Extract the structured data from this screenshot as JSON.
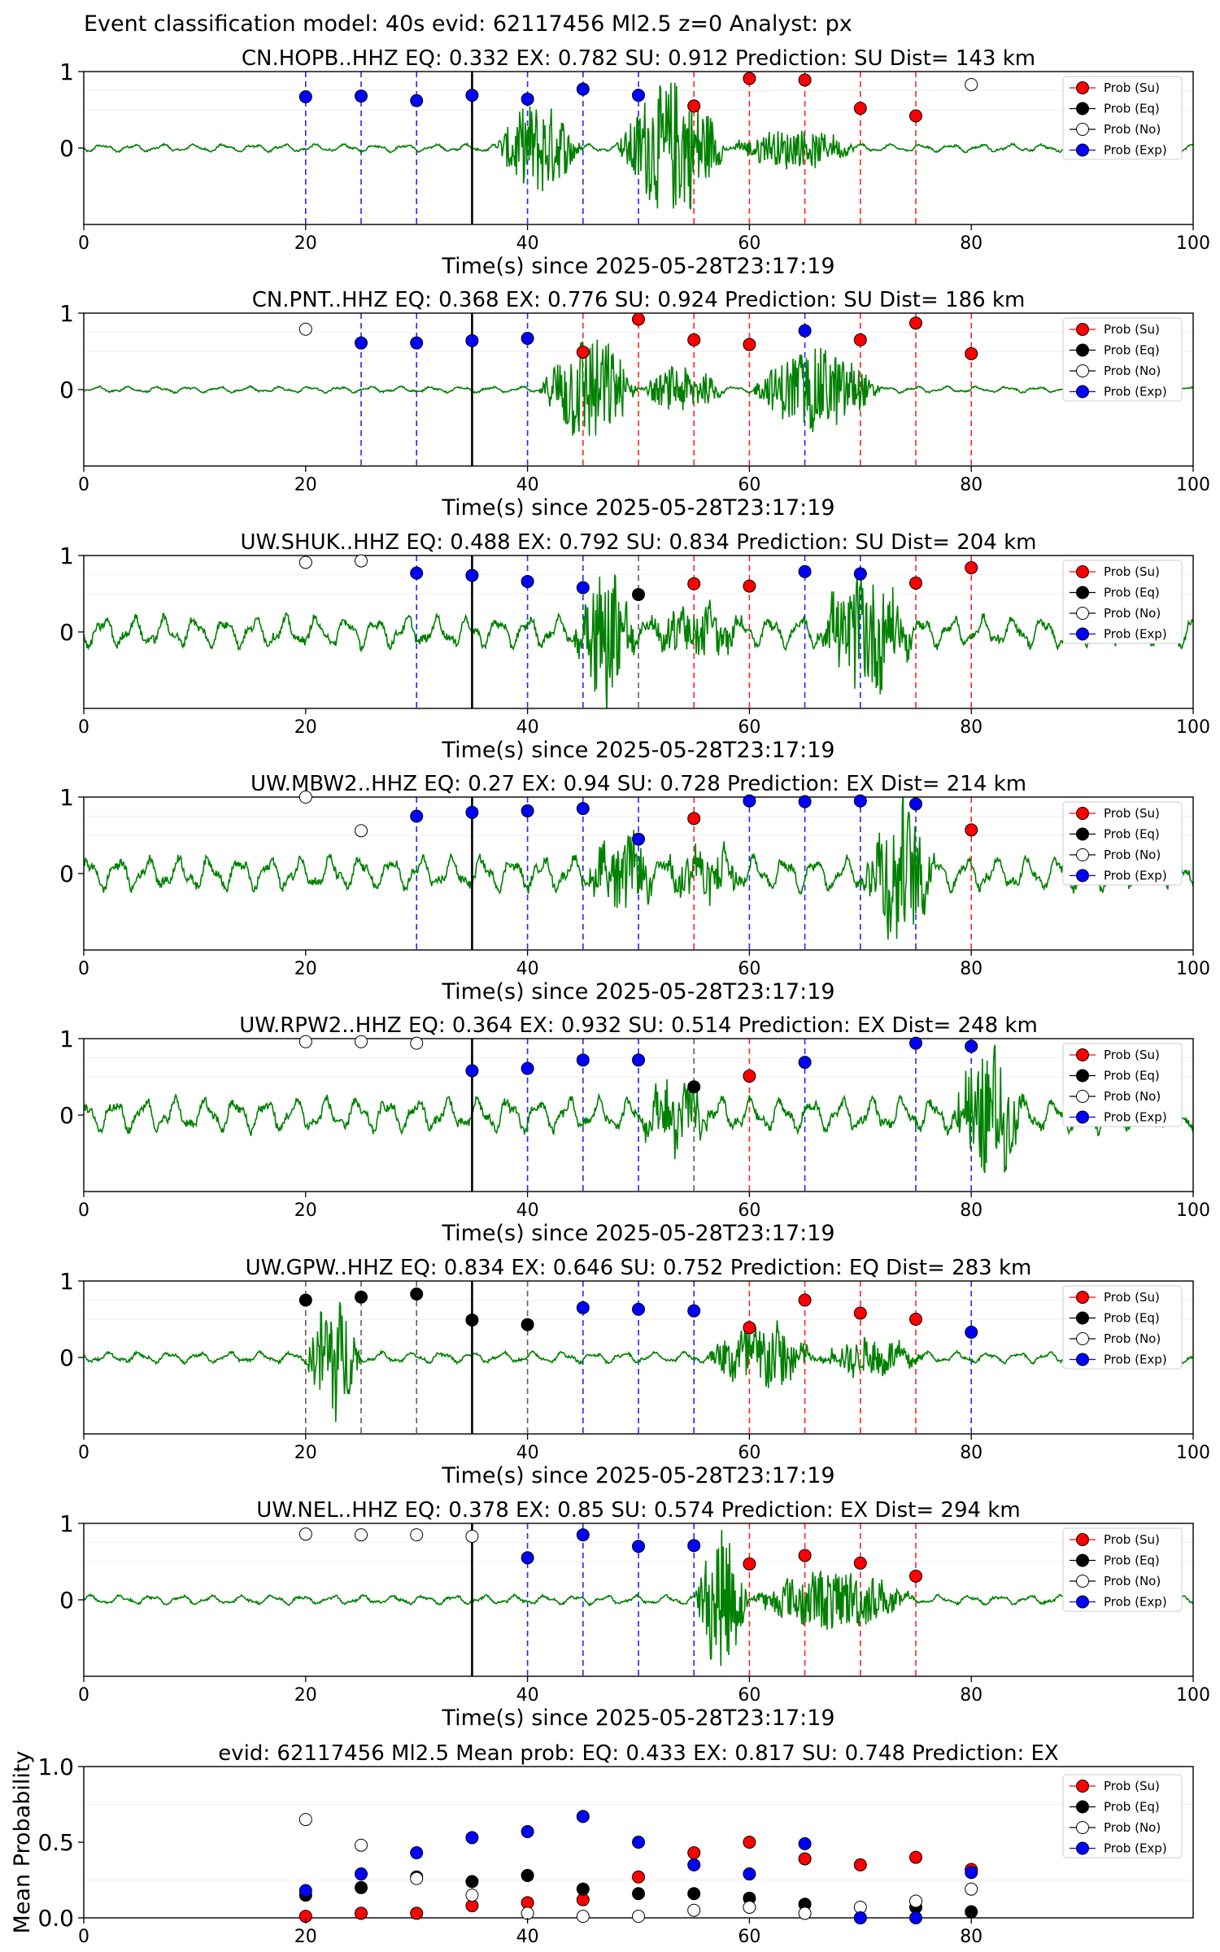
{
  "figure": {
    "suptitle": "Event classification model: 40s evid: 62117456 Ml2.5 z=0 Analyst: px",
    "legend_labels": [
      "Prob (Su)",
      "Prob (Eq)",
      "Prob (No)",
      "Prob (Exp)"
    ],
    "colors": {
      "su": "#ff0000",
      "eq": "#000000",
      "no": "#ffffff",
      "exp": "#0000ff",
      "trace": "#008000",
      "trace_tail": "#a8d8a8"
    }
  },
  "chart_data": [
    {
      "type": "scatter",
      "station": "CN.HOPB..HHZ",
      "title": "CN.HOPB..HHZ   EQ: 0.332  EX: 0.782  SU: 0.912   Prediction: SU    Dist= 143 km",
      "xlabel": "Time(s) since 2025-05-28T23:17:19",
      "xlim": [
        0,
        100
      ],
      "xticks": [
        0,
        20,
        40,
        60,
        80,
        100
      ],
      "yticks": [
        1,
        0
      ],
      "ylim": [
        -1,
        1
      ],
      "pick_time": 35,
      "onset": 37,
      "noise": 0.05,
      "signals": [
        [
          37,
          45,
          0.6
        ],
        [
          48,
          58,
          0.9
        ],
        [
          58,
          70,
          0.25
        ]
      ],
      "points": [
        {
          "x": 20,
          "class": "exp",
          "p": 0.67
        },
        {
          "x": 25,
          "class": "exp",
          "p": 0.68
        },
        {
          "x": 30,
          "class": "exp",
          "p": 0.62
        },
        {
          "x": 35,
          "class": "exp",
          "p": 0.69
        },
        {
          "x": 40,
          "class": "exp",
          "p": 0.64
        },
        {
          "x": 45,
          "class": "exp",
          "p": 0.77
        },
        {
          "x": 50,
          "class": "exp",
          "p": 0.69
        },
        {
          "x": 55,
          "class": "su",
          "p": 0.55
        },
        {
          "x": 60,
          "class": "su",
          "p": 0.91
        },
        {
          "x": 65,
          "class": "su",
          "p": 0.89
        },
        {
          "x": 70,
          "class": "su",
          "p": 0.52
        },
        {
          "x": 75,
          "class": "su",
          "p": 0.42
        },
        {
          "x": 80,
          "class": "no",
          "p": 0.83
        }
      ]
    },
    {
      "type": "scatter",
      "station": "CN.PNT..HHZ",
      "title": "CN.PNT..HHZ   EQ: 0.368  EX: 0.776  SU: 0.924   Prediction: SU    Dist= 186 km",
      "xlabel": "Time(s) since 2025-05-28T23:17:19",
      "xlim": [
        0,
        100
      ],
      "xticks": [
        0,
        20,
        40,
        60,
        80,
        100
      ],
      "yticks": [
        1,
        0
      ],
      "ylim": [
        -1,
        1
      ],
      "pick_time": 35,
      "onset": 41,
      "noise": 0.04,
      "signals": [
        [
          41,
          50,
          0.75
        ],
        [
          50,
          58,
          0.3
        ],
        [
          60,
          72,
          0.55
        ]
      ],
      "points": [
        {
          "x": 20,
          "class": "no",
          "p": 0.79
        },
        {
          "x": 25,
          "class": "exp",
          "p": 0.61
        },
        {
          "x": 30,
          "class": "exp",
          "p": 0.61
        },
        {
          "x": 35,
          "class": "exp",
          "p": 0.64
        },
        {
          "x": 40,
          "class": "exp",
          "p": 0.67
        },
        {
          "x": 45,
          "class": "su",
          "p": 0.49
        },
        {
          "x": 50,
          "class": "su",
          "p": 0.92
        },
        {
          "x": 55,
          "class": "su",
          "p": 0.65
        },
        {
          "x": 60,
          "class": "su",
          "p": 0.59
        },
        {
          "x": 65,
          "class": "exp",
          "p": 0.77
        },
        {
          "x": 70,
          "class": "su",
          "p": 0.65
        },
        {
          "x": 75,
          "class": "su",
          "p": 0.87
        },
        {
          "x": 80,
          "class": "su",
          "p": 0.47
        }
      ]
    },
    {
      "type": "scatter",
      "station": "UW.SHUK..HHZ",
      "title": "UW.SHUK..HHZ   EQ: 0.488  EX: 0.792  SU: 0.834   Prediction: SU    Dist= 204 km",
      "xlabel": "Time(s) since 2025-05-28T23:17:19",
      "xlim": [
        0,
        100
      ],
      "xticks": [
        0,
        20,
        40,
        60,
        80,
        100
      ],
      "yticks": [
        1,
        0
      ],
      "ylim": [
        -1,
        1
      ],
      "pick_time": 35,
      "onset": 44,
      "noise": 0.2,
      "signals": [
        [
          44,
          50,
          0.9
        ],
        [
          50,
          60,
          0.3
        ],
        [
          66,
          75,
          0.75
        ]
      ],
      "points": [
        {
          "x": 20,
          "class": "no",
          "p": 0.91
        },
        {
          "x": 25,
          "class": "no",
          "p": 0.93
        },
        {
          "x": 30,
          "class": "exp",
          "p": 0.77
        },
        {
          "x": 35,
          "class": "exp",
          "p": 0.74
        },
        {
          "x": 40,
          "class": "exp",
          "p": 0.66
        },
        {
          "x": 45,
          "class": "exp",
          "p": 0.58
        },
        {
          "x": 50,
          "class": "eq",
          "p": 0.49
        },
        {
          "x": 55,
          "class": "su",
          "p": 0.63
        },
        {
          "x": 60,
          "class": "su",
          "p": 0.6
        },
        {
          "x": 65,
          "class": "exp",
          "p": 0.79
        },
        {
          "x": 70,
          "class": "exp",
          "p": 0.76
        },
        {
          "x": 75,
          "class": "su",
          "p": 0.64
        },
        {
          "x": 80,
          "class": "su",
          "p": 0.84
        }
      ]
    },
    {
      "type": "scatter",
      "station": "UW.MBW2..HHZ",
      "title": "UW.MBW2..HHZ   EQ: 0.27  EX: 0.94  SU: 0.728   Prediction: EX    Dist= 214 km",
      "xlabel": "Time(s) since 2025-05-28T23:17:19",
      "xlim": [
        0,
        100
      ],
      "xticks": [
        0,
        20,
        40,
        60,
        80,
        100
      ],
      "yticks": [
        1,
        0
      ],
      "ylim": [
        -1,
        1
      ],
      "pick_time": 35,
      "onset": 45,
      "noise": 0.22,
      "signals": [
        [
          45,
          52,
          0.45
        ],
        [
          52,
          60,
          0.3
        ],
        [
          70,
          77,
          0.9
        ]
      ],
      "points": [
        {
          "x": 20,
          "class": "no",
          "p": 1.0
        },
        {
          "x": 25,
          "class": "no",
          "p": 0.56
        },
        {
          "x": 30,
          "class": "exp",
          "p": 0.75
        },
        {
          "x": 35,
          "class": "exp",
          "p": 0.8
        },
        {
          "x": 40,
          "class": "exp",
          "p": 0.82
        },
        {
          "x": 45,
          "class": "exp",
          "p": 0.85
        },
        {
          "x": 50,
          "class": "exp",
          "p": 0.45
        },
        {
          "x": 55,
          "class": "su",
          "p": 0.72
        },
        {
          "x": 60,
          "class": "exp",
          "p": 0.95
        },
        {
          "x": 65,
          "class": "exp",
          "p": 0.94
        },
        {
          "x": 70,
          "class": "exp",
          "p": 0.95
        },
        {
          "x": 75,
          "class": "exp",
          "p": 0.91
        },
        {
          "x": 80,
          "class": "su",
          "p": 0.57
        }
      ]
    },
    {
      "type": "scatter",
      "station": "UW.RPW2..HHZ",
      "title": "UW.RPW2..HHZ   EQ: 0.364  EX: 0.932  SU: 0.514   Prediction: EX    Dist= 248 km",
      "xlabel": "Time(s) since 2025-05-28T23:17:19",
      "xlim": [
        0,
        100
      ],
      "xticks": [
        0,
        20,
        40,
        60,
        80,
        100
      ],
      "yticks": [
        1,
        0
      ],
      "ylim": [
        -1,
        1
      ],
      "pick_time": 35,
      "onset": 50,
      "noise": 0.22,
      "signals": [
        [
          50,
          57,
          0.4
        ],
        [
          78,
          85,
          0.8
        ]
      ],
      "points": [
        {
          "x": 20,
          "class": "no",
          "p": 0.96
        },
        {
          "x": 25,
          "class": "no",
          "p": 0.96
        },
        {
          "x": 30,
          "class": "no",
          "p": 0.94
        },
        {
          "x": 35,
          "class": "exp",
          "p": 0.58
        },
        {
          "x": 40,
          "class": "exp",
          "p": 0.61
        },
        {
          "x": 45,
          "class": "exp",
          "p": 0.72
        },
        {
          "x": 50,
          "class": "exp",
          "p": 0.72
        },
        {
          "x": 55,
          "class": "eq",
          "p": 0.37
        },
        {
          "x": 60,
          "class": "su",
          "p": 0.51
        },
        {
          "x": 65,
          "class": "exp",
          "p": 0.69
        },
        {
          "x": 75,
          "class": "exp",
          "p": 0.94
        },
        {
          "x": 80,
          "class": "exp",
          "p": 0.9
        }
      ]
    },
    {
      "type": "scatter",
      "station": "UW.GPW..HHZ",
      "title": "UW.GPW..HHZ   EQ: 0.834  EX: 0.646  SU: 0.752   Prediction: EQ    Dist= 283 km",
      "xlabel": "Time(s) since 2025-05-28T23:17:19",
      "xlim": [
        0,
        100
      ],
      "xticks": [
        0,
        20,
        40,
        60,
        80,
        100
      ],
      "yticks": [
        1,
        0
      ],
      "ylim": [
        -1,
        1
      ],
      "pick_time": 35,
      "onset": 20,
      "noise": 0.07,
      "signals": [
        [
          20,
          25,
          0.85
        ],
        [
          56,
          66,
          0.5
        ],
        [
          66,
          76,
          0.25
        ]
      ],
      "points": [
        {
          "x": 20,
          "class": "eq",
          "p": 0.75
        },
        {
          "x": 25,
          "class": "eq",
          "p": 0.79
        },
        {
          "x": 30,
          "class": "eq",
          "p": 0.83
        },
        {
          "x": 35,
          "class": "eq",
          "p": 0.49
        },
        {
          "x": 40,
          "class": "eq",
          "p": 0.43
        },
        {
          "x": 45,
          "class": "exp",
          "p": 0.65
        },
        {
          "x": 50,
          "class": "exp",
          "p": 0.63
        },
        {
          "x": 55,
          "class": "exp",
          "p": 0.61
        },
        {
          "x": 60,
          "class": "su",
          "p": 0.39
        },
        {
          "x": 65,
          "class": "su",
          "p": 0.75
        },
        {
          "x": 70,
          "class": "su",
          "p": 0.58
        },
        {
          "x": 75,
          "class": "su",
          "p": 0.5
        },
        {
          "x": 80,
          "class": "exp",
          "p": 0.33
        }
      ]
    },
    {
      "type": "scatter",
      "station": "UW.NEL..HHZ",
      "title": "UW.NEL..HHZ   EQ: 0.378  EX: 0.85  SU: 0.574   Prediction: EX    Dist= 294 km",
      "xlabel": "Time(s) since 2025-05-28T23:17:19",
      "xlim": [
        0,
        100
      ],
      "xticks": [
        0,
        20,
        40,
        60,
        80,
        100
      ],
      "yticks": [
        1,
        0
      ],
      "ylim": [
        -1,
        1
      ],
      "pick_time": 35,
      "onset": 55,
      "noise": 0.06,
      "signals": [
        [
          55,
          60,
          0.9
        ],
        [
          60,
          75,
          0.4
        ]
      ],
      "points": [
        {
          "x": 20,
          "class": "no",
          "p": 0.86
        },
        {
          "x": 25,
          "class": "no",
          "p": 0.85
        },
        {
          "x": 30,
          "class": "no",
          "p": 0.85
        },
        {
          "x": 35,
          "class": "no",
          "p": 0.83
        },
        {
          "x": 40,
          "class": "exp",
          "p": 0.55
        },
        {
          "x": 45,
          "class": "exp",
          "p": 0.85
        },
        {
          "x": 50,
          "class": "exp",
          "p": 0.7
        },
        {
          "x": 55,
          "class": "exp",
          "p": 0.71
        },
        {
          "x": 60,
          "class": "su",
          "p": 0.47
        },
        {
          "x": 65,
          "class": "su",
          "p": 0.58
        },
        {
          "x": 70,
          "class": "su",
          "p": 0.48
        },
        {
          "x": 75,
          "class": "su",
          "p": 0.31
        }
      ]
    },
    {
      "type": "scatter",
      "station": "summary",
      "title": "evid: 62117456  Ml2.5   Mean prob:   EQ: 0.433  EX: 0.817  SU: 0.748   Prediction: EX",
      "ylabel": "Mean Probability",
      "xlim": [
        0,
        100
      ],
      "xticks": [
        0,
        20,
        40,
        60,
        80
      ],
      "ylim": [
        0,
        1.0
      ],
      "yticks": [
        0.0,
        0.5,
        1.0
      ],
      "series": [
        {
          "name": "Prob (Su)",
          "class": "su",
          "x": [
            20,
            25,
            30,
            35,
            40,
            45,
            50,
            55,
            60,
            65,
            70,
            75,
            80
          ],
          "y": [
            0.01,
            0.03,
            0.03,
            0.08,
            0.1,
            0.12,
            0.27,
            0.43,
            0.5,
            0.39,
            0.35,
            0.4,
            0.32
          ]
        },
        {
          "name": "Prob (Eq)",
          "class": "eq",
          "x": [
            20,
            25,
            30,
            35,
            40,
            45,
            50,
            55,
            60,
            65,
            70,
            75,
            80
          ],
          "y": [
            0.15,
            0.2,
            0.27,
            0.24,
            0.28,
            0.19,
            0.16,
            0.16,
            0.13,
            0.09,
            0.0,
            0.07,
            0.04
          ]
        },
        {
          "name": "Prob (No)",
          "class": "no",
          "x": [
            20,
            25,
            30,
            35,
            40,
            45,
            50,
            55,
            60,
            65,
            70,
            75,
            80
          ],
          "y": [
            0.65,
            0.48,
            0.26,
            0.15,
            0.03,
            0.01,
            0.01,
            0.05,
            0.07,
            0.03,
            0.07,
            0.11,
            0.19
          ]
        },
        {
          "name": "Prob (Exp)",
          "class": "exp",
          "x": [
            20,
            25,
            30,
            35,
            40,
            45,
            50,
            55,
            60,
            65,
            70,
            75,
            80
          ],
          "y": [
            0.18,
            0.29,
            0.43,
            0.53,
            0.57,
            0.67,
            0.5,
            0.35,
            0.29,
            0.49,
            0.0,
            0.0,
            0.3
          ]
        }
      ]
    }
  ]
}
